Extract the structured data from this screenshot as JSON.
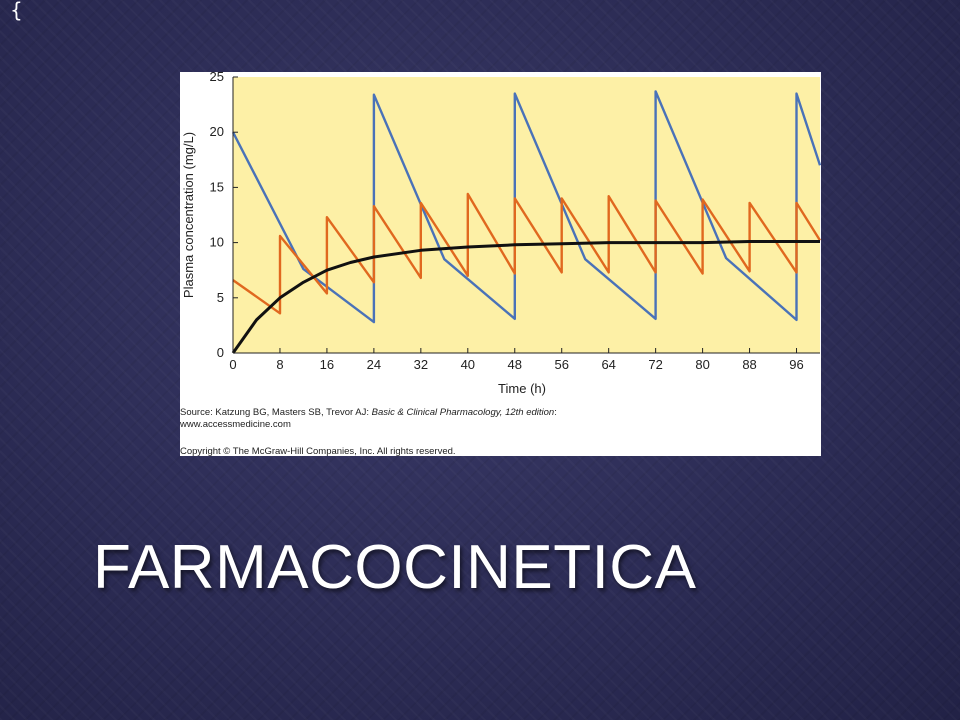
{
  "slide": {
    "title": "FARMACOCINETICA",
    "brace": "{"
  },
  "figure": {
    "source_prefix": "Source: Katzung BG, Masters SB, Trevor AJ: ",
    "source_title": "Basic & Clinical Pharmacology, 12th edition",
    "source_suffix": ":",
    "url": "www.accessmedicine.com",
    "copyright": "Copyright © The McGraw-Hill Companies, Inc. All rights reserved."
  },
  "chart_data": {
    "type": "line",
    "title": "",
    "xlabel": "Time (h)",
    "ylabel": "Plasma concentration (mg/L)",
    "xlim": [
      0,
      100
    ],
    "ylim": [
      0,
      25
    ],
    "x_ticks": [
      0,
      8,
      16,
      24,
      32,
      40,
      48,
      56,
      64,
      72,
      80,
      88,
      96
    ],
    "y_ticks": [
      0,
      5,
      10,
      15,
      20,
      25
    ],
    "grid": false,
    "plot_background": "#fdf0a6",
    "series": [
      {
        "color": "#4a72b8",
        "points": [
          [
            0,
            20
          ],
          [
            12,
            7.6
          ],
          [
            24,
            2.8
          ],
          [
            24,
            23.4
          ],
          [
            36,
            8.5
          ],
          [
            48,
            3.1
          ],
          [
            48,
            23.5
          ],
          [
            60,
            8.5
          ],
          [
            72,
            3.1
          ],
          [
            72,
            23.7
          ],
          [
            84,
            8.6
          ],
          [
            96,
            3.0
          ],
          [
            96,
            23.5
          ],
          [
            100,
            17
          ]
        ]
      },
      {
        "color": "#e0681f",
        "points": [
          [
            0,
            6.6
          ],
          [
            8,
            3.6
          ],
          [
            8,
            10.6
          ],
          [
            16,
            5.4
          ],
          [
            16,
            12.3
          ],
          [
            24,
            6.4
          ],
          [
            24,
            13.3
          ],
          [
            32,
            6.8
          ],
          [
            32,
            13.6
          ],
          [
            40,
            7.0
          ],
          [
            40,
            14.4
          ],
          [
            48,
            7.2
          ],
          [
            48,
            14.0
          ],
          [
            56,
            7.3
          ],
          [
            56,
            14.0
          ],
          [
            64,
            7.3
          ],
          [
            64,
            14.2
          ],
          [
            72,
            7.3
          ],
          [
            72,
            13.8
          ],
          [
            80,
            7.2
          ],
          [
            80,
            13.9
          ],
          [
            88,
            7.4
          ],
          [
            88,
            13.6
          ],
          [
            96,
            7.3
          ],
          [
            96,
            13.6
          ],
          [
            100,
            10.2
          ]
        ]
      },
      {
        "color": "#111111",
        "points": [
          [
            0,
            0
          ],
          [
            4,
            3.0
          ],
          [
            8,
            5.0
          ],
          [
            12,
            6.4
          ],
          [
            16,
            7.5
          ],
          [
            20,
            8.2
          ],
          [
            24,
            8.7
          ],
          [
            32,
            9.3
          ],
          [
            40,
            9.6
          ],
          [
            48,
            9.8
          ],
          [
            56,
            9.9
          ],
          [
            64,
            10.0
          ],
          [
            72,
            10.0
          ],
          [
            80,
            10.0
          ],
          [
            88,
            10.1
          ],
          [
            100,
            10.1
          ]
        ]
      }
    ]
  }
}
